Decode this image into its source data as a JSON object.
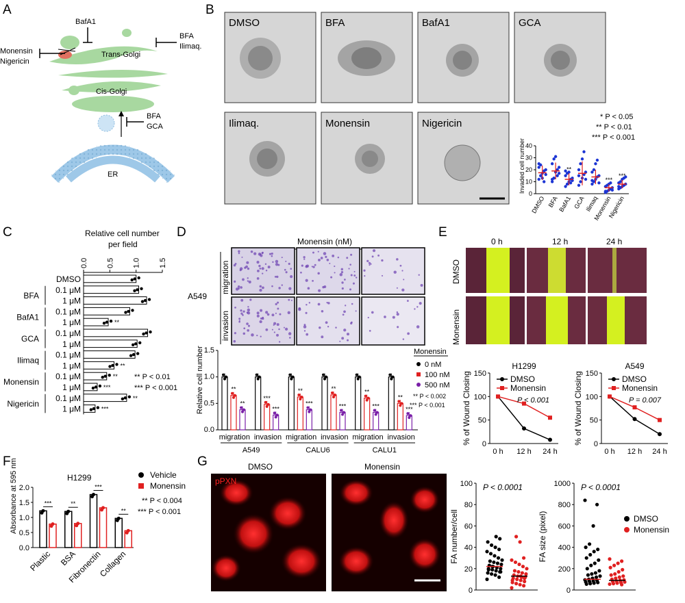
{
  "panel_letters": [
    "A",
    "B",
    "C",
    "D",
    "E",
    "F",
    "G"
  ],
  "colors": {
    "red": "#e02020",
    "blue": "#1c35d4",
    "purple": "#7a1fa8",
    "black": "#000000",
    "golgi": "#a8d8a0",
    "er": "#9ec8e8"
  },
  "panelA": {
    "labels": {
      "bafa1": "BafA1",
      "monensin": "Monensin",
      "nigericin": "Nigericin",
      "bfa1": "BFA",
      "ilimaq": "Ilimaq.",
      "trans_golgi": "Trans-Golgi",
      "cis_golgi": "Cis-Golgi",
      "bfa2": "BFA",
      "gca": "GCA",
      "er": "ER"
    }
  },
  "panelB": {
    "images": [
      "DMSO",
      "BFA",
      "BafA1",
      "GCA",
      "Ilimaq.",
      "Monensin",
      "Nigericin"
    ],
    "legend": [
      "* P < 0.05",
      "** P < 0.01",
      "*** P < 0.001"
    ],
    "chart_data": {
      "type": "scatter",
      "ylabel": "Invaded cell number",
      "ylim": [
        0,
        40
      ],
      "yticks": [
        "0",
        "10",
        "20",
        "30",
        "40"
      ],
      "categories": [
        "DMSO",
        "BFA",
        "BafA1",
        "GCA",
        "Ilimaq",
        "Monensin",
        "Nigericin"
      ],
      "means": [
        17.5,
        19,
        12,
        17,
        14,
        5,
        8
      ],
      "sd": [
        6,
        7,
        5,
        10,
        6,
        3,
        3.5
      ],
      "points": [
        [
          12,
          15,
          17,
          19,
          20,
          22,
          24,
          13,
          10,
          16,
          25
        ],
        [
          10,
          13,
          18,
          20,
          22,
          25,
          29,
          31,
          15,
          17,
          12
        ],
        [
          6,
          8,
          10,
          12,
          13,
          15,
          17,
          18,
          9,
          11,
          19
        ],
        [
          7,
          10,
          13,
          16,
          18,
          20,
          25,
          29,
          35,
          12,
          15
        ],
        [
          8,
          10,
          12,
          14,
          15,
          18,
          20,
          25,
          28,
          9,
          11
        ],
        [
          1,
          2,
          3,
          4,
          5,
          6,
          7,
          8,
          9,
          3,
          2
        ],
        [
          4,
          5,
          6,
          7,
          8,
          9,
          10,
          12,
          13,
          14,
          6
        ]
      ],
      "significance": [
        "",
        "",
        "**",
        "",
        "",
        "***",
        "***"
      ]
    }
  },
  "panelC": {
    "axis_title": [
      "Relative cell number",
      "per field"
    ],
    "rows": [
      {
        "group": "",
        "conc": "DMSO",
        "value": 1.0,
        "sig": ""
      },
      {
        "group": "BFA",
        "conc": "0.1 μM",
        "value": 1.05,
        "sig": ""
      },
      {
        "group": "",
        "conc": "1 μM",
        "value": 1.2,
        "sig": ""
      },
      {
        "group": "BafA1",
        "conc": "0.1 μM",
        "value": 0.88,
        "sig": ""
      },
      {
        "group": "",
        "conc": "1 μM",
        "value": 0.47,
        "sig": "**"
      },
      {
        "group": "GCA",
        "conc": "0.1 μM",
        "value": 1.22,
        "sig": ""
      },
      {
        "group": "",
        "conc": "1 μM",
        "value": 1.02,
        "sig": ""
      },
      {
        "group": "Ilimaq",
        "conc": "0.1 μM",
        "value": 0.98,
        "sig": ""
      },
      {
        "group": "",
        "conc": "1 μM",
        "value": 0.58,
        "sig": "**"
      },
      {
        "group": "Monensin",
        "conc": "0.1 μM",
        "value": 0.44,
        "sig": "**"
      },
      {
        "group": "",
        "conc": "1 μM",
        "value": 0.26,
        "sig": "***"
      },
      {
        "group": "Nigericin",
        "conc": "0.1 μM",
        "value": 0.82,
        "sig": "**"
      },
      {
        "group": "",
        "conc": "1 μM",
        "value": 0.22,
        "sig": "***"
      }
    ],
    "ticks": [
      "0.0",
      "0.5",
      "1.0",
      "1.5"
    ],
    "xlim": [
      0,
      1.5
    ],
    "legend": [
      "** P < 0.01",
      "*** P < 0.001"
    ]
  },
  "panelD": {
    "header": "Monensin (nM)",
    "concs": [
      "0",
      "100",
      "500"
    ],
    "cell_line": "A549",
    "rows": [
      "migration",
      "invasion"
    ],
    "legend_title": "Monensin",
    "legend": [
      "0 nM",
      "100 nM",
      "500 nM"
    ],
    "pvals": [
      "** P < 0.002",
      "*** P < 0.001"
    ],
    "chart_data": {
      "type": "bar",
      "ylabel": "Relative cell number",
      "ylim": [
        0,
        1.5
      ],
      "yticks": [
        "0.0",
        "0.5",
        "1.0",
        "1.5"
      ],
      "groups": [
        "migration",
        "invasion",
        "migration",
        "invasion",
        "migration",
        "invasion"
      ],
      "cell_lines": [
        "A549",
        "CALU6",
        "CALU1"
      ],
      "series": [
        {
          "name": "0 nM",
          "values": [
            1.0,
            1.0,
            1.0,
            1.0,
            1.0,
            1.0
          ]
        },
        {
          "name": "100 nM",
          "values": [
            0.65,
            0.48,
            0.62,
            0.66,
            0.6,
            0.5
          ]
        },
        {
          "name": "500 nM",
          "values": [
            0.38,
            0.28,
            0.38,
            0.33,
            0.33,
            0.27
          ]
        }
      ],
      "sig": [
        [
          "**",
          "**"
        ],
        [
          "***",
          "***"
        ],
        [
          "**",
          "***"
        ],
        [
          "**",
          "***"
        ],
        [
          "**",
          "***"
        ],
        [
          "**",
          "***"
        ]
      ]
    }
  },
  "panelE": {
    "times": [
      "0 h",
      "12 h",
      "24 h"
    ],
    "rows": [
      "DMSO",
      "Monensin"
    ],
    "chart_data": [
      {
        "type": "line",
        "title": "H1299",
        "ylabel": "% of Wound Closing",
        "categories": [
          "0 h",
          "12 h",
          "24 h"
        ],
        "series": [
          {
            "name": "DMSO",
            "values": [
              100,
              32,
              8
            ]
          },
          {
            "name": "Monensin",
            "values": [
              100,
              85,
              55
            ]
          }
        ],
        "ylim": [
          0,
          150
        ],
        "yticks": [
          "0",
          "50",
          "100",
          "150"
        ],
        "pval": "P < 0.001"
      },
      {
        "type": "line",
        "title": "A549",
        "ylabel": "% of Wound Closing",
        "categories": [
          "0 h",
          "12 h",
          "24 h"
        ],
        "series": [
          {
            "name": "DMSO",
            "values": [
              100,
              52,
              20
            ]
          },
          {
            "name": "Monensin",
            "values": [
              100,
              77,
              50
            ]
          }
        ],
        "ylim": [
          0,
          150
        ],
        "yticks": [
          "0",
          "50",
          "100",
          "150"
        ],
        "pval": "P = 0.007"
      }
    ]
  },
  "panelF": {
    "legend": [
      "Vehicle",
      "Monensin"
    ],
    "pvals": [
      "** P < 0.004",
      "*** P < 0.001"
    ],
    "chart_data": {
      "type": "bar",
      "title": "H1299",
      "ylabel": "Absorbance at 595 nm",
      "categories": [
        "Plastic",
        "BSA",
        "Fibronectin",
        "Collagen"
      ],
      "series": [
        {
          "name": "Vehicle",
          "values": [
            1.22,
            1.2,
            1.76,
            0.97
          ]
        },
        {
          "name": "Monensin",
          "values": [
            0.78,
            0.8,
            1.32,
            0.56
          ]
        }
      ],
      "ylim": [
        0,
        2.0
      ],
      "yticks": [
        "0.0",
        "0.5",
        "1.0",
        "1.5",
        "2.0"
      ],
      "sig": [
        "***",
        "**",
        "***",
        "**"
      ]
    }
  },
  "panelG": {
    "titles": [
      "DMSO",
      "Monensin"
    ],
    "stain": "pPXN",
    "legend": [
      "DMSO",
      "Monensin"
    ],
    "chart_data": [
      {
        "type": "scatter",
        "ylabel": "FA number/cell",
        "ylim": [
          0,
          100
        ],
        "yticks": [
          "0",
          "20",
          "40",
          "60",
          "80",
          "100"
        ],
        "pval": "P < 0.0001",
        "groups": [
          {
            "name": "DMSO",
            "mean": 22,
            "points": [
              10,
              12,
              14,
              15,
              16,
              17,
              18,
              19,
              20,
              20,
              21,
              22,
              23,
              24,
              25,
              26,
              27,
              28,
              30,
              32,
              34,
              36,
              38,
              40,
              42,
              45,
              48,
              50,
              22,
              19,
              17
            ]
          },
          {
            "name": "Monensin",
            "mean": 13,
            "points": [
              2,
              4,
              5,
              6,
              7,
              8,
              9,
              10,
              11,
              12,
              12,
              13,
              14,
              15,
              16,
              17,
              18,
              20,
              22,
              24,
              26,
              28,
              30,
              45,
              50,
              9,
              11,
              13
            ]
          }
        ]
      },
      {
        "type": "scatter",
        "ylabel": "FA size (pixel)",
        "ylim": [
          0,
          1000
        ],
        "yticks": [
          "0",
          "200",
          "400",
          "600",
          "800",
          "1000"
        ],
        "pval": "P < 0.0001",
        "groups": [
          {
            "name": "DMSO",
            "mean": 100,
            "points": [
              840,
              800,
              600,
              430,
              400,
              380,
              360,
              330,
              300,
              280,
              250,
              230,
              200,
              180,
              160,
              150,
              140,
              130,
              120,
              110,
              100,
              95,
              90,
              85,
              80,
              75,
              70,
              65,
              60,
              55
            ]
          },
          {
            "name": "Monensin",
            "mean": 90,
            "points": [
              290,
              270,
              250,
              230,
              210,
              190,
              170,
              150,
              140,
              130,
              120,
              110,
              100,
              95,
              90,
              85,
              80,
              75,
              70,
              65,
              60,
              55,
              50
            ]
          }
        ]
      }
    ]
  }
}
